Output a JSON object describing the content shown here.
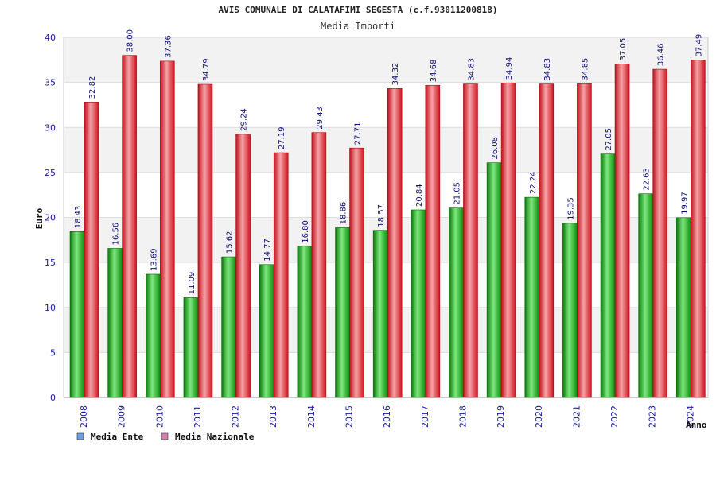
{
  "chart_data": {
    "type": "bar",
    "title": "AVIS COMUNALE DI CALATAFIMI SEGESTA (c.f.93011200818)",
    "subtitle": "Media Importi",
    "ylabel": "Euro",
    "xlabel": "Anno",
    "ylim": [
      0,
      40
    ],
    "yticks": [
      0,
      5,
      10,
      15,
      20,
      25,
      30,
      35,
      40
    ],
    "grid": true,
    "legend_position": "bottom-left",
    "categories": [
      "2008",
      "2009",
      "2010",
      "2011",
      "2012",
      "2013",
      "2014",
      "2015",
      "2016",
      "2017",
      "2018",
      "2019",
      "2020",
      "2021",
      "2022",
      "2023",
      "2024"
    ],
    "series": [
      {
        "name": "Media Ente",
        "color": "#1fb01f",
        "legend_color": "#6a9fe0",
        "values": [
          18.43,
          16.56,
          13.69,
          11.09,
          15.62,
          14.77,
          16.8,
          18.86,
          18.57,
          20.84,
          21.05,
          26.08,
          22.24,
          19.35,
          27.05,
          22.63,
          19.97
        ],
        "labels": [
          "18.43",
          "16.56",
          "13.69",
          "11.09",
          "15.62",
          "14.77",
          "16.80",
          "18.86",
          "18.57",
          "20.84",
          "21.05",
          "26.08",
          "22.24",
          "19.35",
          "27.05",
          "22.63",
          "19.97"
        ]
      },
      {
        "name": "Media Nazionale",
        "color": "#e8202a",
        "legend_color": "#d77fb0",
        "values": [
          32.82,
          38.0,
          37.36,
          34.79,
          29.24,
          27.19,
          29.43,
          27.71,
          34.32,
          34.68,
          34.83,
          34.94,
          34.83,
          34.85,
          37.05,
          36.46,
          37.49
        ],
        "labels": [
          "32.82",
          "38.00",
          "37.36",
          "34.79",
          "29.24",
          "27.19",
          "29.43",
          "27.71",
          "34.32",
          "34.68",
          "34.83",
          "34.94",
          "34.83",
          "34.85",
          "37.05",
          "36.46",
          "37.49"
        ]
      }
    ]
  }
}
